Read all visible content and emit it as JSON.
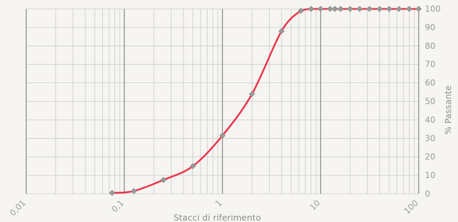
{
  "chart_data": {
    "type": "line",
    "xlabel": "Stacci di riferimento",
    "ylabel": "% Passante",
    "x_scale": "log",
    "xlim": [
      0.01,
      100
    ],
    "ylim": [
      0,
      100
    ],
    "x_tick_labels": [
      "0,01",
      "0,1",
      "1",
      "10",
      "100"
    ],
    "y_tick_labels": [
      "0",
      "10",
      "20",
      "30",
      "40",
      "50",
      "60",
      "70",
      "80",
      "90",
      "100"
    ],
    "y_axis_position": "right",
    "grid": true,
    "legend": "none",
    "series": [
      {
        "x": [
          0.075,
          0.125,
          0.25,
          0.5,
          1,
          2,
          4,
          6.3,
          8,
          10,
          12.5,
          14,
          16,
          20,
          25,
          31.5,
          40,
          50,
          63,
          80,
          100
        ],
        "y": [
          0.5,
          1.5,
          7.5,
          15,
          31.5,
          54,
          88,
          99,
          100,
          100,
          100,
          100,
          100,
          100,
          100,
          100,
          100,
          100,
          100,
          100,
          100
        ]
      }
    ],
    "colors": {
      "line": "#e8384f",
      "marker": "#9a9a9a",
      "grid_minor": "#c9c9c9",
      "grid_major": "#8a8a8a",
      "text": "#9a9a9a"
    }
  }
}
